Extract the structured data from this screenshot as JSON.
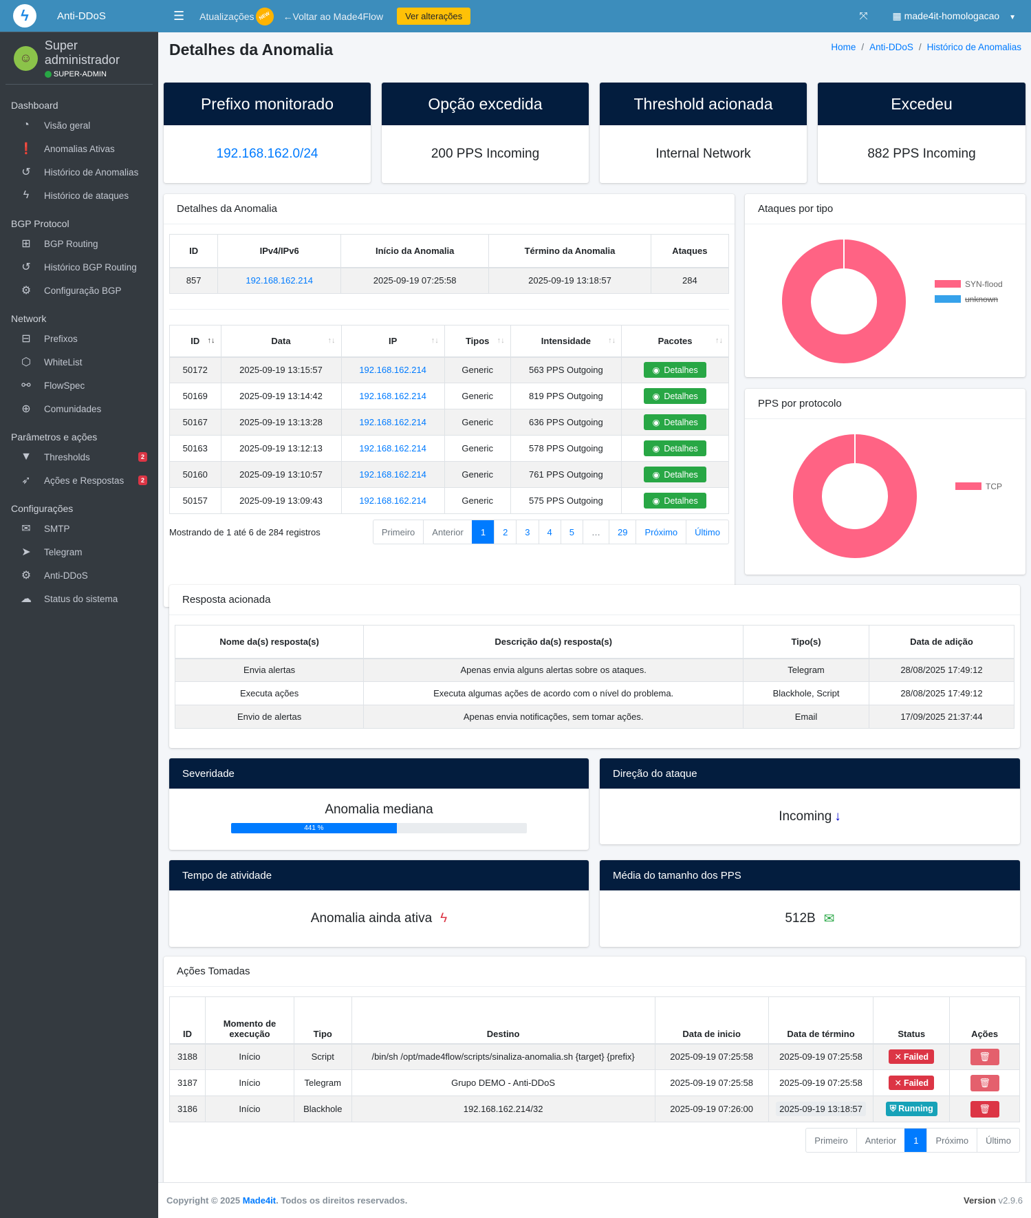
{
  "sidebar": {
    "brand": "Anti-DDoS",
    "user": {
      "name": "Super administrador",
      "role": "SUPER-ADMIN"
    },
    "sections": [
      {
        "header": "Dashboard",
        "items": [
          {
            "label": "Visão geral",
            "icon": "gauge-icon",
            "glyph": "◔"
          },
          {
            "label": "Anomalias Ativas",
            "icon": "alert-circle-icon",
            "glyph": "❗"
          },
          {
            "label": "Histórico de Anomalias",
            "icon": "history-icon",
            "glyph": "↺"
          },
          {
            "label": "Histórico de ataques",
            "icon": "bolt-icon",
            "glyph": "ϟ"
          }
        ]
      },
      {
        "header": "BGP Protocol",
        "items": [
          {
            "label": "BGP Routing",
            "icon": "network-icon",
            "glyph": "⊞"
          },
          {
            "label": "Histórico BGP Routing",
            "icon": "history-icon",
            "glyph": "↺"
          },
          {
            "label": "Configuração BGP",
            "icon": "gear-icon",
            "glyph": "⚙"
          }
        ]
      },
      {
        "header": "Network",
        "items": [
          {
            "label": "Prefixos",
            "icon": "sitemap-icon",
            "glyph": "⊟"
          },
          {
            "label": "WhiteList",
            "icon": "hexagon-icon",
            "glyph": "⬡"
          },
          {
            "label": "FlowSpec",
            "icon": "route-icon",
            "glyph": "⚯"
          },
          {
            "label": "Comunidades",
            "icon": "globe-icon",
            "glyph": "⊕"
          }
        ]
      },
      {
        "header": "Parâmetros e ações",
        "items": [
          {
            "label": "Thresholds",
            "icon": "filter-icon",
            "glyph": "▼",
            "badge": "2"
          },
          {
            "label": "Ações e Respostas",
            "icon": "rocket-icon",
            "glyph": "➶",
            "badge": "2"
          }
        ]
      },
      {
        "header": "Configurações",
        "items": [
          {
            "label": "SMTP",
            "icon": "mail-settings-icon",
            "glyph": "✉"
          },
          {
            "label": "Telegram",
            "icon": "telegram-icon",
            "glyph": "➤"
          },
          {
            "label": "Anti-DDoS",
            "icon": "gears-icon",
            "glyph": "⚙"
          },
          {
            "label": "Status do sistema",
            "icon": "cloud-upload-icon",
            "glyph": "☁"
          }
        ]
      }
    ]
  },
  "topbar": {
    "updates": "Atualizações",
    "new_badge": "NEW",
    "back": "Voltar ao Made4Flow",
    "changes_button": "Ver alterações",
    "tenant": "made4it-homologacao"
  },
  "page": {
    "title": "Detalhes da Anomalia",
    "breadcrumb": [
      "Home",
      "Anti-DDoS",
      "Histórico de Anomalias"
    ]
  },
  "info_cards": [
    {
      "title": "Prefixo monitorado",
      "value": "192.168.162.0/24",
      "link": true
    },
    {
      "title": "Opção excedida",
      "value": "200 PPS Incoming"
    },
    {
      "title": "Threshold acionada",
      "value": "Internal Network"
    },
    {
      "title": "Excedeu",
      "value": "882 PPS Incoming"
    }
  ],
  "anomaly": {
    "title": "Detalhes da Anomalia",
    "headers": [
      "ID",
      "IPv4/IPv6",
      "Início da Anomalia",
      "Término da Anomalia",
      "Ataques"
    ],
    "row": [
      "857",
      "192.168.162.214",
      "2025-09-19 07:25:58",
      "2025-09-19 13:18:57",
      "284"
    ]
  },
  "attacks": {
    "headers": [
      "ID",
      "Data",
      "IP",
      "Tipos",
      "Intensidade",
      "Pacotes"
    ],
    "button_label": "Detalhes",
    "rows": [
      [
        "50172",
        "2025-09-19 13:15:57",
        "192.168.162.214",
        "Generic",
        "563 PPS Outgoing"
      ],
      [
        "50169",
        "2025-09-19 13:14:42",
        "192.168.162.214",
        "Generic",
        "819 PPS Outgoing"
      ],
      [
        "50167",
        "2025-09-19 13:13:28",
        "192.168.162.214",
        "Generic",
        "636 PPS Outgoing"
      ],
      [
        "50163",
        "2025-09-19 13:12:13",
        "192.168.162.214",
        "Generic",
        "578 PPS Outgoing"
      ],
      [
        "50160",
        "2025-09-19 13:10:57",
        "192.168.162.214",
        "Generic",
        "761 PPS Outgoing"
      ],
      [
        "50157",
        "2025-09-19 13:09:43",
        "192.168.162.214",
        "Generic",
        "575 PPS Outgoing"
      ]
    ],
    "summary": "Mostrando de 1 até 6 de 284 registros",
    "pagination": [
      "Primeiro",
      "Anterior",
      "1",
      "2",
      "3",
      "4",
      "5",
      "…",
      "29",
      "Próximo",
      "Último"
    ]
  },
  "charts": {
    "by_type_title": "Ataques por tipo",
    "by_protocol_title": "PPS por protocolo"
  },
  "chart_data": [
    {
      "type": "pie",
      "title": "Ataques por tipo",
      "series": [
        {
          "name": "SYN-flood",
          "value": 284,
          "color": "#ff6384"
        },
        {
          "name": "unknown",
          "value": 0,
          "color": "#36a2eb",
          "hidden": true
        }
      ],
      "legend": "right"
    },
    {
      "type": "pie",
      "title": "PPS por protocolo",
      "series": [
        {
          "name": "TCP",
          "value": 100,
          "color": "#ff6384"
        }
      ],
      "legend": "right"
    }
  ],
  "responses": {
    "title": "Resposta acionada",
    "headers": [
      "Nome da(s) resposta(s)",
      "Descrição da(s) resposta(s)",
      "Tipo(s)",
      "Data de adição"
    ],
    "rows": [
      [
        "Envia alertas",
        "Apenas envia alguns alertas sobre os ataques.",
        "Telegram",
        "28/08/2025 17:49:12"
      ],
      [
        "Executa ações",
        "Executa algumas ações de acordo com o nível do problema.",
        "Blackhole, Script",
        "28/08/2025 17:49:12"
      ],
      [
        "Envio de alertas",
        "Apenas envia notificações, sem tomar ações.",
        "Email",
        "17/09/2025 21:37:44"
      ]
    ]
  },
  "severity": {
    "title": "Severidade",
    "value": "Anomalia mediana",
    "progress_label": "441 %",
    "progress_fraction": 0.56
  },
  "direction": {
    "title": "Direção do ataque",
    "value": "Incoming"
  },
  "uptime": {
    "title": "Tempo de atividade",
    "value": "Anomalia ainda ativa"
  },
  "pps_size": {
    "title": "Média do tamanho dos PPS",
    "value": "512B"
  },
  "actions": {
    "title": "Ações Tomadas",
    "headers": [
      "ID",
      "Momento de execução",
      "Tipo",
      "Destino",
      "Data de inicio",
      "Data de término",
      "Status",
      "Ações"
    ],
    "rows": [
      {
        "id": "3188",
        "moment": "Início",
        "type": "Script",
        "dest": "/bin/sh /opt/made4flow/scripts/sinaliza-anomalia.sh {target} {prefix}",
        "start": "2025-09-19 07:25:58",
        "end": "2025-09-19 07:25:58",
        "status": "Failed"
      },
      {
        "id": "3187",
        "moment": "Início",
        "type": "Telegram",
        "dest": "Grupo DEMO - Anti-DDoS",
        "start": "2025-09-19 07:25:58",
        "end": "2025-09-19 07:25:58",
        "status": "Failed"
      },
      {
        "id": "3186",
        "moment": "Início",
        "type": "Blackhole",
        "dest": "192.168.162.214/32",
        "start": "2025-09-19 07:26:00",
        "end": "2025-09-19 13:18:57",
        "status": "Running"
      }
    ],
    "pagination": [
      "Primeiro",
      "Anterior",
      "1",
      "Próximo",
      "Último"
    ]
  },
  "footer": {
    "copyright_prefix": "Copyright © 2025",
    "company": "Made4it",
    "copyright_suffix": ". Todos os direitos reservados.",
    "version_label": "Version",
    "version": "v2.9.6"
  }
}
